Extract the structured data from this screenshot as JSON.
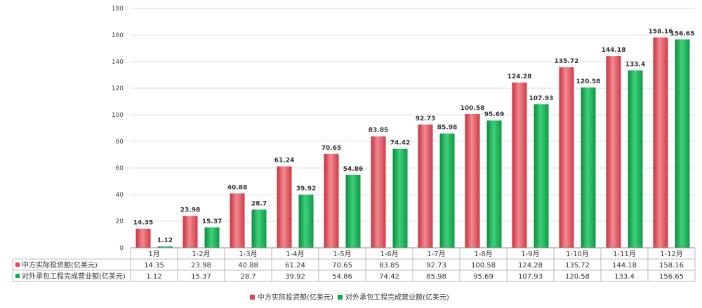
{
  "chart_data": {
    "type": "bar",
    "title": "",
    "xlabel": "",
    "ylabel": "",
    "ylim": [
      0,
      180
    ],
    "yticks": [
      0,
      20,
      40,
      60,
      80,
      100,
      120,
      140,
      160,
      180
    ],
    "grid": true,
    "legend_position": "bottom",
    "categories": [
      "1月",
      "1-2月",
      "1-3月",
      "1-4月",
      "1-5月",
      "1-6月",
      "1-7月",
      "1-8月",
      "1-9月",
      "1-10月",
      "1-11月",
      "1-12月"
    ],
    "series": [
      {
        "name": "中方实际投资额(亿美元)",
        "color": "#e0454f",
        "values": [
          14.35,
          23.98,
          40.88,
          61.24,
          70.65,
          83.85,
          92.73,
          100.58,
          124.28,
          135.72,
          144.18,
          158.16
        ],
        "labels": [
          "14.35",
          "23.98",
          "40.88",
          "61.24",
          "70.65",
          "83.85",
          "92.73",
          "100.58",
          "124.28",
          "135.72",
          "144.18",
          "158.16"
        ]
      },
      {
        "name": "对外承包工程完成营业额(亿美元)",
        "color": "#14a850",
        "values": [
          1.12,
          15.37,
          28.7,
          39.92,
          54.86,
          74.42,
          85.98,
          95.69,
          107.93,
          120.58,
          133.4,
          156.65
        ],
        "labels": [
          "1.12",
          "15.37",
          "28.7",
          "39.92",
          "54.86",
          "74.42",
          "85.98",
          "95.69",
          "107.93",
          "120.58",
          "133.4",
          "156.65"
        ]
      }
    ]
  }
}
